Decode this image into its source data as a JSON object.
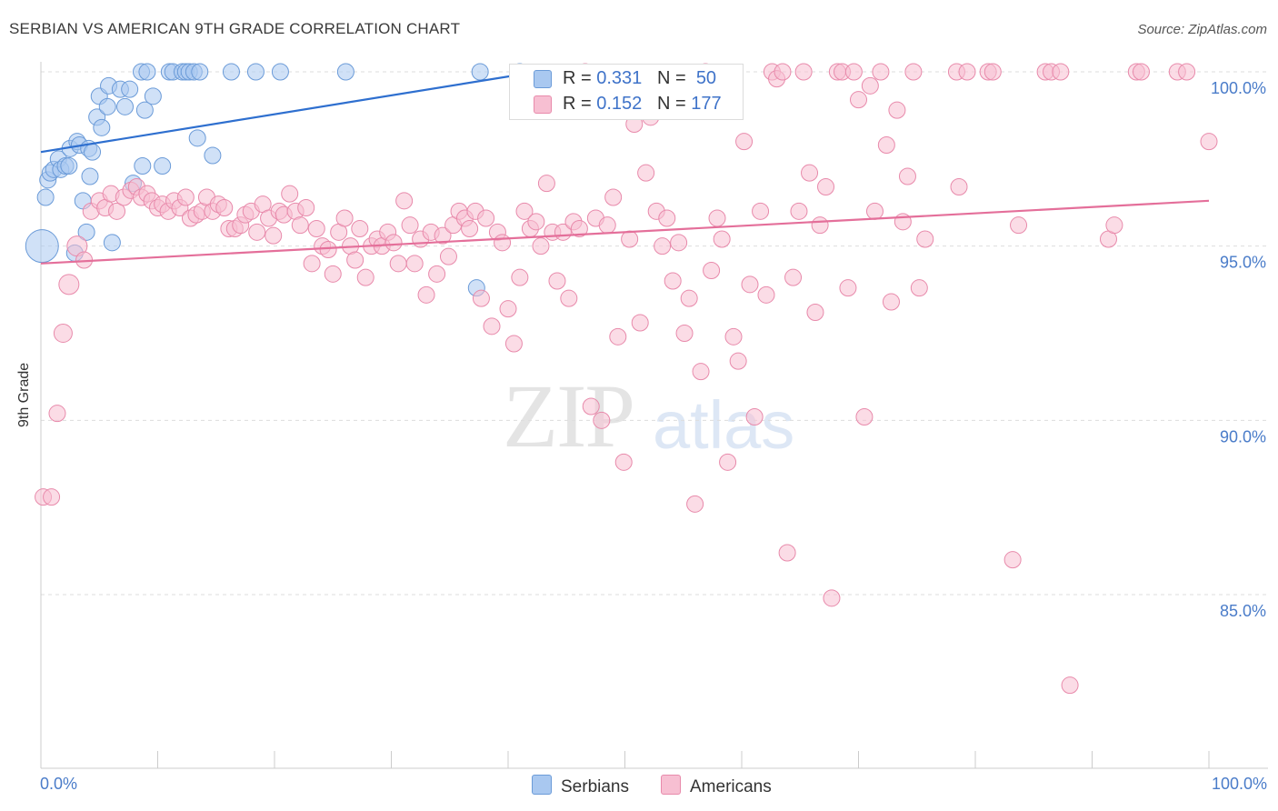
{
  "title": "SERBIAN VS AMERICAN 9TH GRADE CORRELATION CHART",
  "source": "Source: ZipAtlas.com",
  "watermark": {
    "zip": "ZIP",
    "atlas": "atlas"
  },
  "legend": {
    "r_label": "R =",
    "n_label": "N =",
    "serbians": {
      "r": "0.331",
      "n": "50"
    },
    "americans": {
      "r": "0.152",
      "n": "177"
    }
  },
  "bottom_legend": {
    "serbians": "Serbians",
    "americans": "Americans"
  },
  "colors": {
    "serbians_fill": "#a9c8f0",
    "serbians_stroke": "#6b9bd8",
    "serbians_line": "#2e6fcf",
    "americans_fill": "#f7bfd2",
    "americans_stroke": "#e88aab",
    "americans_line": "#e46f9a",
    "tick_label": "#4a7cc9",
    "grid": "#dddddd"
  },
  "chart_data": {
    "type": "scatter",
    "title": "SERBIAN VS AMERICAN 9TH GRADE CORRELATION CHART",
    "xlabel": "",
    "ylabel": "9th Grade",
    "xlim": [
      0,
      100
    ],
    "ylim": [
      80.5,
      101.0
    ],
    "x_tick_labels": [
      "0.0%",
      "100.0%"
    ],
    "y_ticks": [
      85,
      90,
      95,
      100
    ],
    "y_tick_labels": [
      "85.0%",
      "90.0%",
      "95.0%",
      "100.0%"
    ],
    "grid": true,
    "series": [
      {
        "name": "Serbians",
        "r": 0.331,
        "n": 50,
        "trend": {
          "x": [
            0,
            42.5
          ],
          "y": [
            97.7,
            100.0
          ]
        },
        "points": [
          [
            0.1,
            95.0,
            18
          ],
          [
            0.4,
            96.4,
            9
          ],
          [
            0.6,
            96.9,
            9
          ],
          [
            0.8,
            97.1,
            9
          ],
          [
            1.1,
            97.2,
            9
          ],
          [
            1.5,
            97.5,
            9
          ],
          [
            1.7,
            97.2,
            9
          ],
          [
            2.1,
            97.3,
            9
          ],
          [
            2.4,
            97.3,
            9
          ],
          [
            2.5,
            97.8,
            9
          ],
          [
            2.9,
            94.8,
            9
          ],
          [
            3.1,
            98.0,
            9
          ],
          [
            3.3,
            97.9,
            9
          ],
          [
            3.6,
            96.3,
            9
          ],
          [
            3.9,
            95.4,
            9
          ],
          [
            4.1,
            97.8,
            9
          ],
          [
            4.2,
            97.0,
            9
          ],
          [
            4.4,
            97.7,
            9
          ],
          [
            4.8,
            98.7,
            9
          ],
          [
            5.0,
            99.3,
            9
          ],
          [
            5.2,
            98.4,
            9
          ],
          [
            5.7,
            99.0,
            9
          ],
          [
            5.8,
            99.6,
            9
          ],
          [
            6.1,
            95.1,
            9
          ],
          [
            6.8,
            99.5,
            9
          ],
          [
            7.2,
            99.0,
            9
          ],
          [
            7.6,
            99.5,
            9
          ],
          [
            7.9,
            96.8,
            9
          ],
          [
            8.6,
            100.0,
            9
          ],
          [
            8.7,
            97.3,
            9
          ],
          [
            8.9,
            98.9,
            9
          ],
          [
            9.1,
            100.0,
            9
          ],
          [
            9.6,
            99.3,
            9
          ],
          [
            10.4,
            97.3,
            9
          ],
          [
            11.0,
            100.0,
            9
          ],
          [
            11.3,
            100.0,
            9
          ],
          [
            12.1,
            100.0,
            9
          ],
          [
            12.4,
            100.0,
            9
          ],
          [
            12.7,
            100.0,
            9
          ],
          [
            13.1,
            100.0,
            9
          ],
          [
            13.6,
            100.0,
            9
          ],
          [
            13.4,
            98.1,
            9
          ],
          [
            14.7,
            97.6,
            9
          ],
          [
            16.3,
            100.0,
            9
          ],
          [
            18.4,
            100.0,
            9
          ],
          [
            20.5,
            100.0,
            9
          ],
          [
            26.1,
            100.0,
            9
          ],
          [
            37.3,
            93.8,
            9
          ],
          [
            37.6,
            100.0,
            9
          ],
          [
            41.0,
            100.0,
            9
          ]
        ]
      },
      {
        "name": "Americans",
        "r": 0.152,
        "n": 177,
        "trend": {
          "x": [
            0,
            100
          ],
          "y": [
            94.5,
            96.3
          ]
        },
        "points": [
          [
            0.2,
            87.8,
            9
          ],
          [
            0.9,
            87.8,
            9
          ],
          [
            1.4,
            90.2,
            9
          ],
          [
            1.9,
            92.5,
            10
          ],
          [
            2.4,
            93.9,
            11
          ],
          [
            3.1,
            95.0,
            11
          ],
          [
            3.7,
            94.6,
            9
          ],
          [
            4.3,
            96.0,
            9
          ],
          [
            5.0,
            96.3,
            9
          ],
          [
            5.5,
            96.1,
            9
          ],
          [
            6.0,
            96.5,
            9
          ],
          [
            6.5,
            96.0,
            9
          ],
          [
            7.1,
            96.4,
            9
          ],
          [
            7.7,
            96.6,
            9
          ],
          [
            8.2,
            96.7,
            9
          ],
          [
            8.6,
            96.4,
            9
          ],
          [
            9.1,
            96.5,
            9
          ],
          [
            9.5,
            96.3,
            9
          ],
          [
            10.0,
            96.1,
            9
          ],
          [
            10.4,
            96.2,
            9
          ],
          [
            10.9,
            96.0,
            9
          ],
          [
            11.4,
            96.3,
            9
          ],
          [
            11.9,
            96.1,
            9
          ],
          [
            12.4,
            96.4,
            9
          ],
          [
            12.8,
            95.8,
            9
          ],
          [
            13.3,
            95.9,
            9
          ],
          [
            13.8,
            96.0,
            9
          ],
          [
            14.2,
            96.4,
            9
          ],
          [
            14.7,
            96.0,
            9
          ],
          [
            15.2,
            96.2,
            9
          ],
          [
            15.7,
            96.1,
            9
          ],
          [
            16.1,
            95.5,
            9
          ],
          [
            16.6,
            95.5,
            9
          ],
          [
            17.1,
            95.6,
            9
          ],
          [
            17.5,
            95.9,
            9
          ],
          [
            18.0,
            96.0,
            9
          ],
          [
            18.5,
            95.4,
            9
          ],
          [
            19.0,
            96.2,
            9
          ],
          [
            19.5,
            95.8,
            9
          ],
          [
            19.9,
            95.3,
            9
          ],
          [
            20.4,
            96.0,
            9
          ],
          [
            20.8,
            95.9,
            9
          ],
          [
            21.3,
            96.5,
            9
          ],
          [
            21.8,
            96.0,
            9
          ],
          [
            22.2,
            95.6,
            9
          ],
          [
            22.7,
            96.1,
            9
          ],
          [
            23.2,
            94.5,
            9
          ],
          [
            23.6,
            95.5,
            9
          ],
          [
            24.1,
            95.0,
            9
          ],
          [
            24.6,
            94.9,
            9
          ],
          [
            25.0,
            94.2,
            9
          ],
          [
            25.5,
            95.4,
            9
          ],
          [
            26.0,
            95.8,
            9
          ],
          [
            26.5,
            95.0,
            9
          ],
          [
            26.9,
            94.6,
            9
          ],
          [
            27.3,
            95.5,
            9
          ],
          [
            27.8,
            94.1,
            9
          ],
          [
            28.3,
            95.0,
            9
          ],
          [
            28.8,
            95.2,
            9
          ],
          [
            29.2,
            95.0,
            9
          ],
          [
            29.7,
            95.4,
            9
          ],
          [
            30.2,
            95.1,
            9
          ],
          [
            30.6,
            94.5,
            9
          ],
          [
            31.1,
            96.3,
            9
          ],
          [
            31.6,
            95.6,
            9
          ],
          [
            32.0,
            94.5,
            9
          ],
          [
            32.5,
            95.2,
            9
          ],
          [
            33.0,
            93.6,
            9
          ],
          [
            33.4,
            95.4,
            9
          ],
          [
            33.9,
            94.2,
            9
          ],
          [
            34.4,
            95.3,
            9
          ],
          [
            34.9,
            94.7,
            9
          ],
          [
            35.3,
            95.6,
            9
          ],
          [
            35.8,
            96.0,
            9
          ],
          [
            36.3,
            95.8,
            9
          ],
          [
            36.7,
            95.5,
            9
          ],
          [
            37.2,
            96.0,
            9
          ],
          [
            37.7,
            93.5,
            9
          ],
          [
            38.1,
            95.8,
            9
          ],
          [
            38.6,
            92.7,
            9
          ],
          [
            39.1,
            95.4,
            9
          ],
          [
            39.5,
            95.1,
            9
          ],
          [
            40.0,
            93.2,
            9
          ],
          [
            40.5,
            92.2,
            9
          ],
          [
            41.0,
            94.1,
            9
          ],
          [
            41.4,
            96.0,
            9
          ],
          [
            41.9,
            95.5,
            9
          ],
          [
            42.4,
            95.7,
            9
          ],
          [
            42.8,
            95.0,
            9
          ],
          [
            43.3,
            96.8,
            9
          ],
          [
            43.8,
            95.4,
            9
          ],
          [
            44.2,
            94.0,
            9
          ],
          [
            44.7,
            95.4,
            9
          ],
          [
            45.2,
            93.5,
            9
          ],
          [
            45.6,
            95.7,
            9
          ],
          [
            46.1,
            95.5,
            9
          ],
          [
            46.6,
            100.0,
            9
          ],
          [
            47.1,
            90.4,
            9
          ],
          [
            47.5,
            95.8,
            9
          ],
          [
            48.0,
            90.0,
            9
          ],
          [
            48.5,
            95.6,
            9
          ],
          [
            49.0,
            96.4,
            9
          ],
          [
            49.4,
            92.4,
            9
          ],
          [
            49.9,
            88.8,
            9
          ],
          [
            50.4,
            95.2,
            9
          ],
          [
            50.8,
            98.5,
            9
          ],
          [
            51.3,
            92.8,
            9
          ],
          [
            51.8,
            97.1,
            9
          ],
          [
            52.2,
            98.7,
            9
          ],
          [
            52.7,
            96.0,
            9
          ],
          [
            53.2,
            95.0,
            9
          ],
          [
            53.6,
            95.8,
            9
          ],
          [
            54.1,
            94.0,
            9
          ],
          [
            54.6,
            95.1,
            9
          ],
          [
            55.1,
            92.5,
            9
          ],
          [
            55.5,
            93.5,
            9
          ],
          [
            56.0,
            87.6,
            9
          ],
          [
            56.5,
            91.4,
            9
          ],
          [
            56.9,
            100.0,
            9
          ],
          [
            57.4,
            94.3,
            9
          ],
          [
            57.9,
            95.8,
            9
          ],
          [
            58.3,
            95.2,
            9
          ],
          [
            58.8,
            88.8,
            9
          ],
          [
            59.3,
            92.4,
            9
          ],
          [
            59.7,
            91.7,
            9
          ],
          [
            60.2,
            98.0,
            9
          ],
          [
            60.7,
            93.9,
            9
          ],
          [
            61.1,
            90.1,
            9
          ],
          [
            61.6,
            96.0,
            9
          ],
          [
            62.1,
            93.6,
            9
          ],
          [
            62.6,
            100.0,
            9
          ],
          [
            63.0,
            99.8,
            9
          ],
          [
            63.5,
            100.0,
            9
          ],
          [
            63.9,
            86.2,
            9
          ],
          [
            64.4,
            94.1,
            9
          ],
          [
            64.9,
            96.0,
            9
          ],
          [
            65.3,
            100.0,
            9
          ],
          [
            65.8,
            97.1,
            9
          ],
          [
            66.3,
            93.1,
            9
          ],
          [
            66.7,
            95.6,
            9
          ],
          [
            67.2,
            96.7,
            9
          ],
          [
            67.7,
            84.9,
            9
          ],
          [
            68.2,
            100.0,
            9
          ],
          [
            68.6,
            100.0,
            9
          ],
          [
            69.1,
            93.8,
            9
          ],
          [
            69.6,
            100.0,
            9
          ],
          [
            70.0,
            99.2,
            9
          ],
          [
            70.5,
            90.1,
            9
          ],
          [
            71.0,
            99.6,
            9
          ],
          [
            71.4,
            96.0,
            9
          ],
          [
            71.9,
            100.0,
            9
          ],
          [
            72.4,
            97.9,
            9
          ],
          [
            72.8,
            93.4,
            9
          ],
          [
            73.3,
            98.9,
            9
          ],
          [
            73.8,
            95.7,
            9
          ],
          [
            74.2,
            97.0,
            9
          ],
          [
            74.7,
            100.0,
            9
          ],
          [
            75.2,
            93.8,
            9
          ],
          [
            75.7,
            95.2,
            9
          ],
          [
            78.6,
            96.7,
            9
          ],
          [
            78.4,
            100.0,
            9
          ],
          [
            79.3,
            100.0,
            9
          ],
          [
            81.1,
            100.0,
            9
          ],
          [
            81.5,
            100.0,
            9
          ],
          [
            83.7,
            95.6,
            9
          ],
          [
            83.2,
            86.0,
            9
          ],
          [
            86.0,
            100.0,
            9
          ],
          [
            86.5,
            100.0,
            9
          ],
          [
            87.3,
            100.0,
            9
          ],
          [
            88.1,
            82.4,
            9
          ],
          [
            91.4,
            95.2,
            9
          ],
          [
            91.9,
            95.6,
            9
          ],
          [
            93.8,
            100.0,
            9
          ],
          [
            94.2,
            100.0,
            9
          ],
          [
            97.3,
            100.0,
            9
          ],
          [
            98.1,
            100.0,
            9
          ],
          [
            100.0,
            98.0,
            9
          ]
        ]
      }
    ]
  }
}
